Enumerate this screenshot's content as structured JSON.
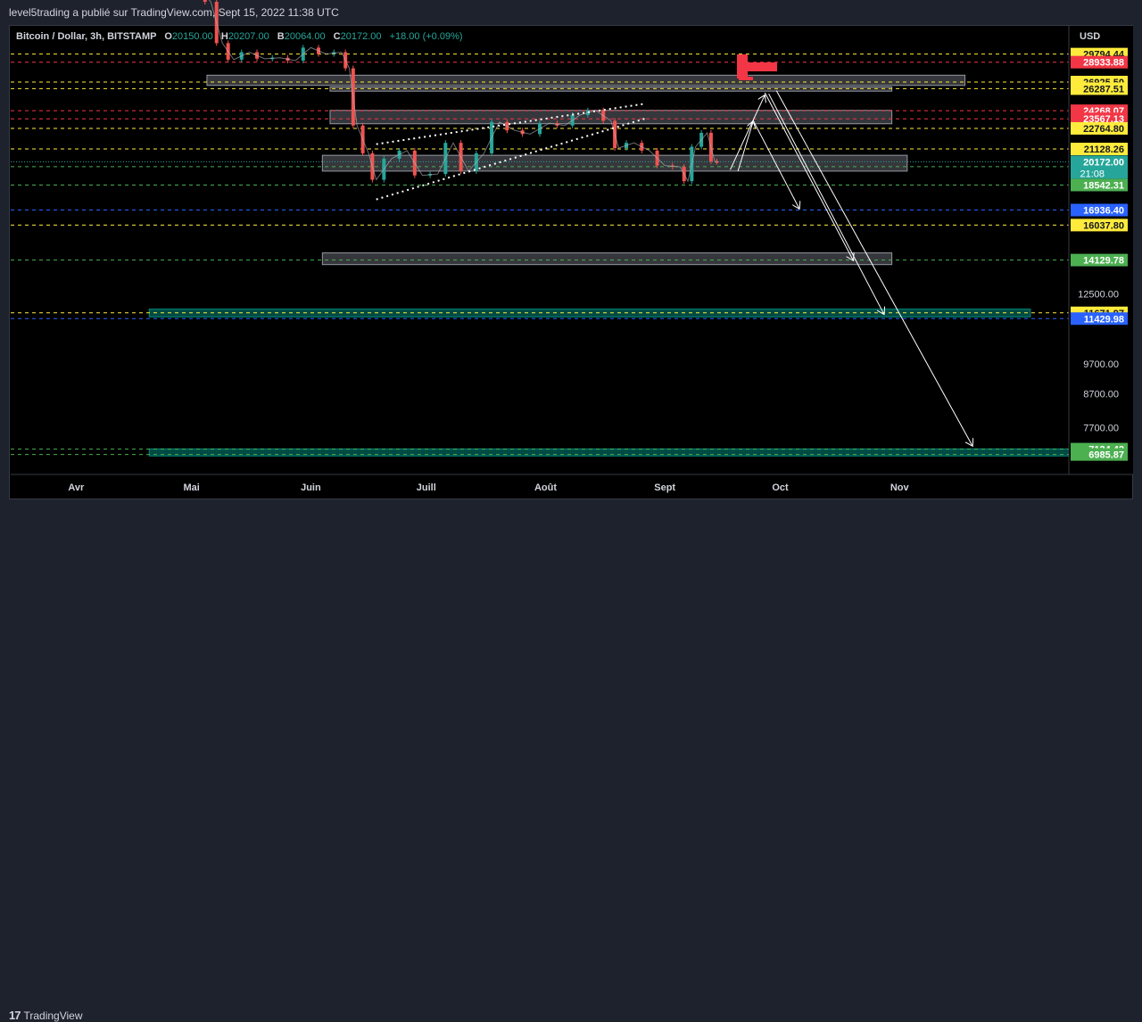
{
  "header": {
    "publish_note": "level5trading a publié sur TradingView.com, Sept 15, 2022 11:38 UTC"
  },
  "symbol": {
    "name": "Bitcoin / Dollar, 3h, BITSTAMP",
    "open_label": "O",
    "open": "20150.00",
    "high_label": "H",
    "high": "20207.00",
    "low_label": "B",
    "low": "20064.00",
    "close_label": "C",
    "close": "20172.00",
    "change": "+18.00 (+0.09%)"
  },
  "footer": {
    "logo_text": "TradingView",
    "logo_icon": "tradingview-logo-icon"
  },
  "colors": {
    "yellow_line": "#ffeb3b",
    "red_line": "#f23645",
    "green_line": "#4caf50",
    "blue_line": "#2962ff",
    "zone_fill": "#787b86",
    "teal_zone": "#00897b",
    "candle_up": "#26a69a",
    "candle_down": "#ef5350",
    "current_price": "#26a69a"
  },
  "chart_data": {
    "type": "line",
    "currency_label": "USD",
    "x_ticks": [
      "Avr",
      "Mai",
      "Juin",
      "Juill",
      "Août",
      "Sept",
      "Oct",
      "Nov"
    ],
    "x_tick_dates": [
      "2022-04-01",
      "2022-05-01",
      "2022-06-01",
      "2022-07-01",
      "2022-08-01",
      "2022-09-01",
      "2022-10-01",
      "2022-11-01"
    ],
    "x_range": [
      "2022-03-15",
      "2022-12-15"
    ],
    "y_range": [
      6500,
      33000
    ],
    "y_scale": "log",
    "y_ticks": [
      "12500.00",
      "9700.00",
      "8700.00",
      "7700.00"
    ],
    "current_price": {
      "value": "20172.00",
      "countdown": "21:08"
    },
    "price_levels": [
      {
        "value": "29794.44",
        "color": "yellow",
        "style": "dashed"
      },
      {
        "value": "28933.88",
        "color": "red",
        "style": "dashed"
      },
      {
        "value": "26925.50",
        "color": "yellow",
        "style": "dashed"
      },
      {
        "value": "26287.51",
        "color": "yellow",
        "style": "dashed"
      },
      {
        "value": "24268.07",
        "color": "red",
        "style": "dashed"
      },
      {
        "value": "23567.13",
        "color": "red",
        "style": "dashed"
      },
      {
        "value": "22764.80",
        "color": "yellow",
        "style": "dashed"
      },
      {
        "value": "21128.26",
        "color": "yellow",
        "style": "dashed"
      },
      {
        "value": "19819.49",
        "color": "green",
        "style": "dashed"
      },
      {
        "value": "18542.31",
        "color": "green",
        "style": "dashed"
      },
      {
        "value": "16936.40",
        "color": "blue",
        "style": "dashed"
      },
      {
        "value": "16037.80",
        "color": "yellow",
        "style": "dashed"
      },
      {
        "value": "14129.78",
        "color": "green",
        "style": "dashed"
      },
      {
        "value": "11671.97",
        "color": "yellow",
        "style": "dashed"
      },
      {
        "value": "11429.98",
        "color": "blue",
        "style": "dashed"
      },
      {
        "value": "7124.42",
        "color": "green",
        "style": "dashed"
      },
      {
        "value": "6985.87",
        "color": "green",
        "style": "dashed"
      }
    ],
    "zones": [
      {
        "from_date": "2022-05-05",
        "to_date": "2022-11-18",
        "low": 26600,
        "high": 27600,
        "kind": "gray"
      },
      {
        "from_date": "2022-06-06",
        "to_date": "2022-10-30",
        "low": 26050,
        "high": 26450,
        "kind": "gray"
      },
      {
        "from_date": "2022-06-06",
        "to_date": "2022-10-30",
        "low": 23150,
        "high": 24300,
        "kind": "gray"
      },
      {
        "from_date": "2022-06-04",
        "to_date": "2022-11-03",
        "low": 19500,
        "high": 20650,
        "kind": "gray"
      },
      {
        "from_date": "2022-06-04",
        "to_date": "2022-10-30",
        "low": 13900,
        "high": 14500,
        "kind": "gray"
      },
      {
        "from_date": "2022-04-20",
        "to_date": "2022-12-05",
        "low": 11500,
        "high": 11830,
        "kind": "teal"
      },
      {
        "from_date": "2022-04-20",
        "to_date": "2022-12-18",
        "low": 6950,
        "high": 7130,
        "kind": "teal"
      }
    ],
    "trendlines": [
      {
        "from": [
          "2022-06-18",
          17600
        ],
        "to": [
          "2022-08-27",
          23600
        ],
        "style": "dotted"
      },
      {
        "from": [
          "2022-06-18",
          21500
        ],
        "to": [
          "2022-08-27",
          24900
        ],
        "style": "dotted"
      }
    ],
    "projection_arrows": [
      {
        "from": [
          "2022-09-18",
          19600
        ],
        "to": [
          "2022-09-27",
          25700
        ]
      },
      {
        "from": [
          "2022-09-20",
          19500
        ],
        "to": [
          "2022-09-24",
          23400
        ]
      },
      {
        "from": [
          "2022-09-24",
          23400
        ],
        "to": [
          "2022-10-06",
          17000
        ]
      },
      {
        "from": [
          "2022-09-27",
          25900
        ],
        "to": [
          "2022-10-20",
          14100
        ]
      },
      {
        "from": [
          "2022-09-28",
          25800
        ],
        "to": [
          "2022-10-28",
          11600
        ]
      },
      {
        "from": [
          "2022-09-30",
          26100
        ],
        "to": [
          "2022-11-20",
          7200
        ]
      }
    ],
    "price_series": {
      "dates": [
        "2022-04-30",
        "2022-05-03",
        "2022-05-06",
        "2022-05-09",
        "2022-05-12",
        "2022-05-16",
        "2022-05-20",
        "2022-05-24",
        "2022-05-28",
        "2022-06-01",
        "2022-06-05",
        "2022-06-09",
        "2022-06-11",
        "2022-06-13",
        "2022-06-16",
        "2022-06-18",
        "2022-06-22",
        "2022-06-26",
        "2022-06-30",
        "2022-07-04",
        "2022-07-08",
        "2022-07-12",
        "2022-07-16",
        "2022-07-20",
        "2022-07-24",
        "2022-07-28",
        "2022-08-02",
        "2022-08-06",
        "2022-08-10",
        "2022-08-14",
        "2022-08-18",
        "2022-08-20",
        "2022-08-24",
        "2022-08-28",
        "2022-09-01",
        "2022-09-05",
        "2022-09-07",
        "2022-09-09",
        "2022-09-12",
        "2022-09-14",
        "2022-09-15"
      ],
      "close": [
        38500,
        37800,
        36000,
        31000,
        29200,
        30000,
        29300,
        29400,
        29100,
        30500,
        29800,
        30000,
        28300,
        23000,
        20800,
        18900,
        20400,
        21000,
        19200,
        19300,
        21600,
        19500,
        20800,
        23300,
        22600,
        22300,
        23200,
        23000,
        23900,
        24300,
        23400,
        21200,
        21600,
        21000,
        19900,
        19800,
        18800,
        21300,
        22400,
        20200,
        20172
      ]
    }
  }
}
